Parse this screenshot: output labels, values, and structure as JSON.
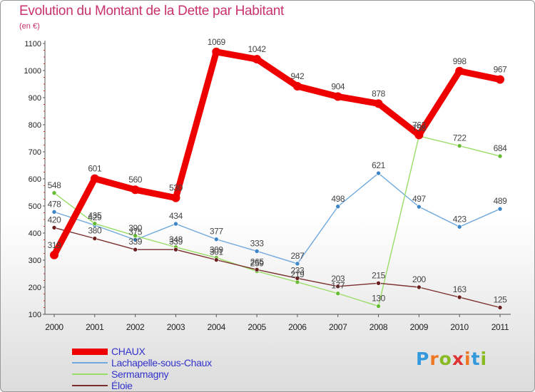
{
  "header": {
    "title": "Evolution du Montant de la Dette par Habitant",
    "subtitle": "(en €)"
  },
  "logo": {
    "text": "Proxiti",
    "letter_colors": [
      "#3399dd",
      "#ee7722",
      "#88bb22",
      "#dd3333",
      "#ee7722",
      "#3399dd",
      "#88bb22"
    ]
  },
  "chart_data": {
    "type": "line",
    "title": "Evolution du Montant de la Dette par Habitant",
    "subtitle": "(en €)",
    "x": [
      "2000",
      "2001",
      "2002",
      "2003",
      "2004",
      "2005",
      "2006",
      "2007",
      "2008",
      "2009",
      "2010",
      "2011"
    ],
    "ylim": [
      100,
      1100
    ],
    "yticks": [
      100,
      200,
      300,
      400,
      500,
      600,
      700,
      800,
      900,
      1000,
      1100
    ],
    "grid": false,
    "legend_position": "bottom-left",
    "series": [
      {
        "name": "Lachapelle-sous-Chaux",
        "color": "#6fa8dc",
        "marker": "#3d85c6",
        "values": [
          478,
          429,
          375,
          434,
          377,
          333,
          287,
          498,
          621,
          497,
          423,
          489
        ]
      },
      {
        "name": "Sermamagny",
        "color": "#99dd66",
        "marker": "#66bb33",
        "values": [
          548,
          435,
          390,
          348,
          309,
          259,
          219,
          177,
          130,
          758,
          722,
          684
        ]
      },
      {
        "name": "Éloie",
        "color": "#7a2e2e",
        "marker": "#6b2020",
        "values": [
          420,
          380,
          339,
          339,
          301,
          265,
          233,
          203,
          215,
          200,
          163,
          125
        ]
      },
      {
        "name": "CHAUX",
        "color": "#ee0000",
        "marker": "#ee0000",
        "values": [
          319,
          601,
          560,
          530,
          1069,
          1042,
          942,
          904,
          878,
          762,
          998,
          967
        ]
      }
    ]
  }
}
